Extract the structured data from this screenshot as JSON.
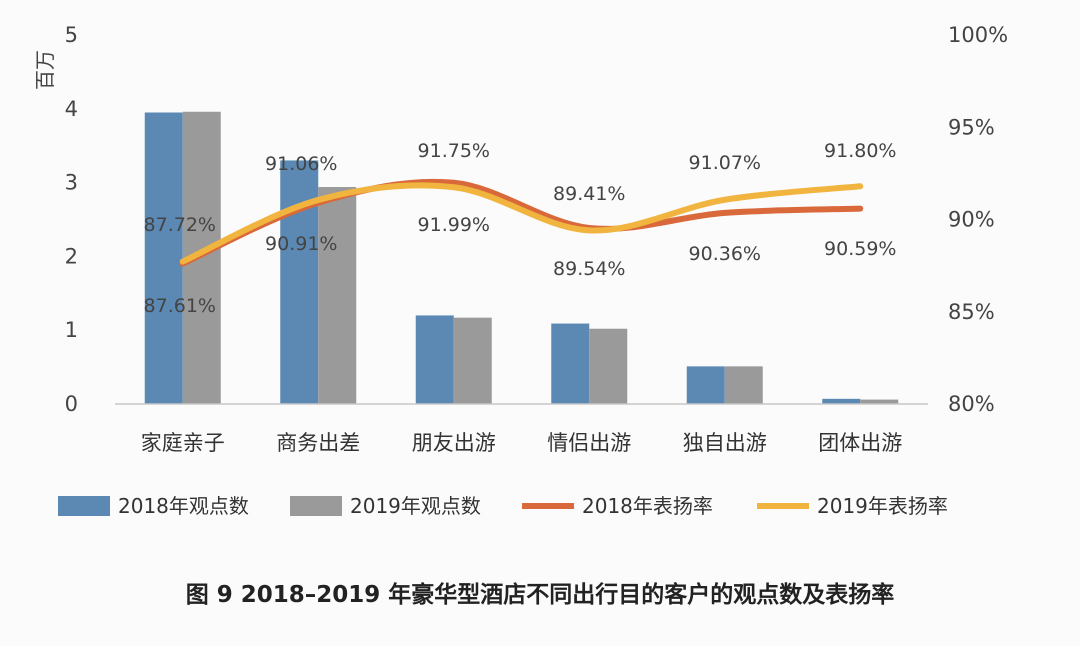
{
  "caption": "图 9   2018–2019 年豪华型酒店不同出行目的客户的观点数及表扬率",
  "chart_data": {
    "type": "bar+line",
    "categories": [
      "家庭亲子",
      "商务出差",
      "朋友出游",
      "情侣出游",
      "独自出游",
      "团体出游"
    ],
    "y_left": {
      "unit_label": "百万",
      "range": [
        0,
        5
      ],
      "ticks": [
        "0",
        "1",
        "2",
        "3",
        "4",
        "5"
      ]
    },
    "y_right": {
      "range": [
        80,
        100
      ],
      "ticks": [
        "80%",
        "85%",
        "90%",
        "95%",
        "100%"
      ]
    },
    "bar_series": [
      {
        "name": "2018年观点数",
        "color": "#5b89b4",
        "values": [
          3.95,
          3.3,
          1.2,
          1.09,
          0.51,
          0.07
        ]
      },
      {
        "name": "2019年观点数",
        "color": "#9a9a9a",
        "values": [
          3.96,
          2.94,
          1.17,
          1.02,
          0.51,
          0.06
        ]
      }
    ],
    "line_series": [
      {
        "name": "2018年表扬率",
        "color": "#d9693a",
        "values": [
          87.61,
          90.91,
          91.99,
          89.54,
          90.36,
          90.59
        ],
        "labels": [
          "87.61%",
          "90.91%",
          "91.99%",
          "89.54%",
          "90.36%",
          "90.59%"
        ]
      },
      {
        "name": "2019年表扬率",
        "color": "#f0b43f",
        "values": [
          87.72,
          91.06,
          91.75,
          89.41,
          91.07,
          91.8
        ],
        "labels": [
          "87.72%",
          "91.06%",
          "91.75%",
          "89.41%",
          "91.07%",
          "91.80%"
        ]
      }
    ],
    "legend_position": "bottom"
  }
}
